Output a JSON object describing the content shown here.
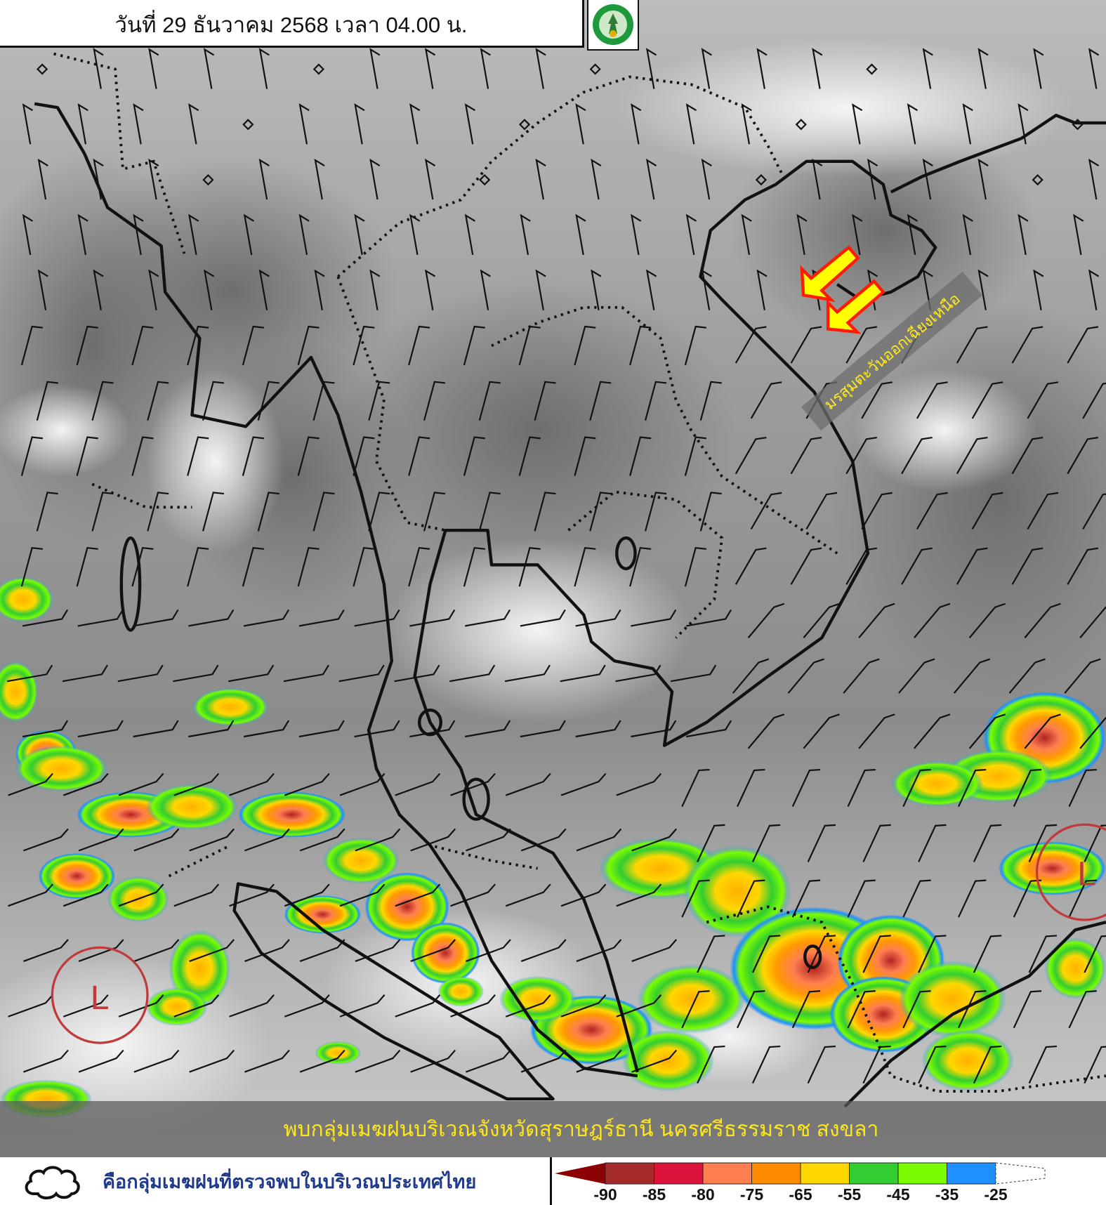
{
  "header": {
    "title": "วันที่ 29 ธันวาคม 2568 เวลา 04.00 น.",
    "logo_icon": "tmd-logo"
  },
  "map": {
    "annotation_monsoon": "มรสุมตะวันออกเฉียงเหนือ",
    "arrow_color": "#ffff00",
    "arrow_outline": "#ff1a00",
    "low_pressure_labels": [
      "L",
      "L"
    ],
    "low_pressure_color": "#c0393b"
  },
  "banner": {
    "text": "พบกลุ่มเมฆฝนบริเวณจังหวัดสุราษฎร์ธานี นครศรีธรรมราช สงขลา"
  },
  "legend": {
    "cloud_icon": "cloud-outline-icon",
    "cloud_description": "คือกลุ่มเมฆฝนที่ตรวจพบในบริเวณประเทศไทย",
    "scale_colors": [
      "#8b0000",
      "#a52a2a",
      "#dc143c",
      "#ff7f50",
      "#ff8c00",
      "#ffd700",
      "#32cd32",
      "#7cfc00",
      "#1e90ff",
      "#ffffff"
    ],
    "scale_labels": [
      "-90",
      "-85",
      "-80",
      "-75",
      "-65",
      "-55",
      "-45",
      "-35",
      "-25"
    ]
  }
}
